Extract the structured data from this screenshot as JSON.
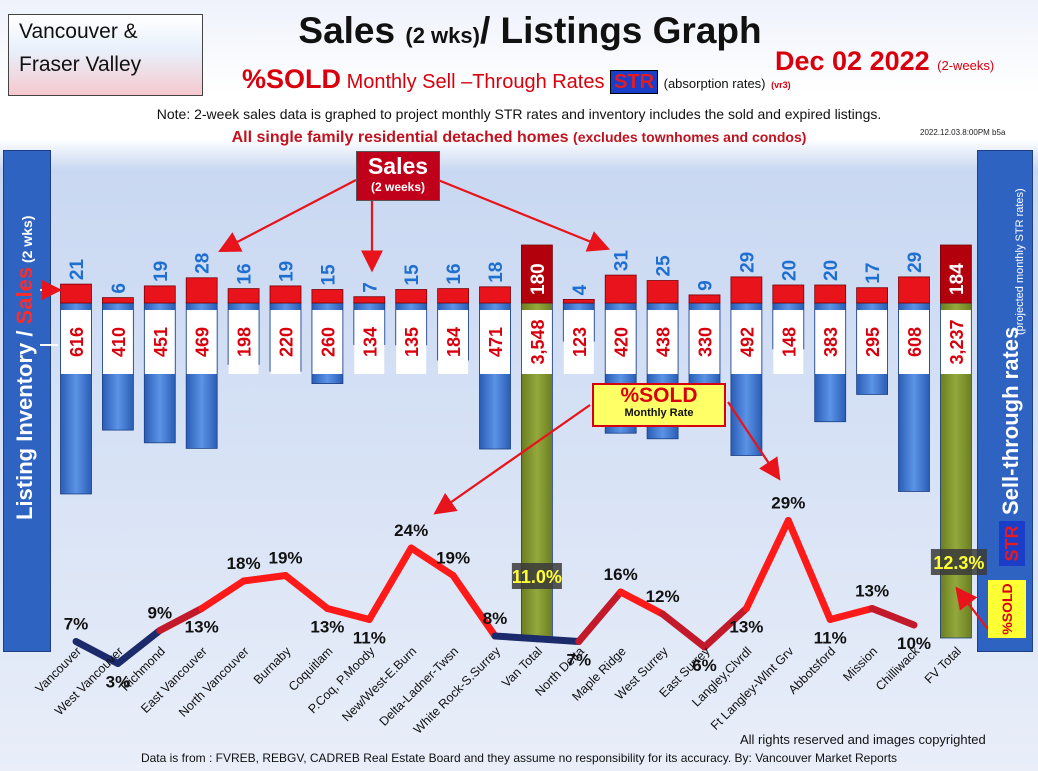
{
  "header": {
    "region_line1": "Vancouver &",
    "region_line2": "Fraser Valley",
    "title_main": "Sales",
    "title_small": "(2 wks)",
    "title_rest": "/ Listings Graph",
    "date": "Dec 02  2022",
    "date_note": "(2-weeks)",
    "subtitle_sold": "%SOLD",
    "subtitle_rates": "Monthly Sell –Through Rates",
    "subtitle_str": "STR",
    "subtitle_abs": "(absorption rates)",
    "subtitle_vr": "(vr3)",
    "note": "Note: 2-week sales data is graphed to project monthly STR rates and inventory includes the sold and expired listings.",
    "homes": "All single family residential detached homes",
    "homes_small": "(excludes townhomes and condos)",
    "stamp": "2022.12.03.8:00PM b5a"
  },
  "side_labels": {
    "left_main": "Listing Inventory / ",
    "left_sales": "Sales",
    "left_small": " (2 wks)",
    "right_main": "Sell-through rates",
    "right_small": "(projected monthly STR rates)",
    "right_str": "STR",
    "right_sold": "%SOLD"
  },
  "callouts": {
    "sales_title": "Sales",
    "sales_sub": "(2 weeks)",
    "sold_title": "%SOLD",
    "sold_sub": "Monthly Rate"
  },
  "footer": {
    "rights": "All rights reserved and  images copyrighted",
    "source": "Data is from : FVREB, REBGV, CADREB Real Estate Board and they assume no responsibility for its accuracy. By: Vancouver Market Reports"
  },
  "colors": {
    "inventory_bar": "#3a73cc",
    "sales_bar": "#e8131b",
    "total_bar": "#7a8f2e",
    "total_sales": "#b3000d",
    "line_high": "#ff1a1a",
    "line_low": "#1b2a6b"
  },
  "chart_data": {
    "type": "bar",
    "categories": [
      "Vancouver",
      "West Vancouver",
      "Richmond",
      "East Vancouver",
      "North Vancouver",
      "Burnaby",
      "Coquitlam",
      "P.Coq, P.Moody",
      "New/West-E.Burn",
      "Delta-Ladner-Twsn",
      "White Rock-S.Surrey",
      "Van Total",
      "North Delta",
      "Maple Ridge",
      "West Surrey",
      "East Surrey",
      "Langley,Clvrdl",
      "Ft Langley-Wlnt Grv",
      "Abbotsford",
      "Mission",
      "Chilliwack",
      "FV Total"
    ],
    "series": [
      {
        "name": "Listing Inventory",
        "values": [
          616,
          410,
          451,
          469,
          198,
          220,
          260,
          134,
          135,
          184,
          471,
          3548,
          123,
          420,
          438,
          330,
          492,
          148,
          383,
          295,
          608,
          3237
        ]
      },
      {
        "name": "Sales",
        "values": [
          21,
          6,
          19,
          28,
          16,
          19,
          15,
          7,
          15,
          16,
          18,
          180,
          4,
          31,
          25,
          9,
          29,
          20,
          20,
          17,
          29,
          184
        ]
      },
      {
        "name": "%SOLD",
        "values": [
          7,
          3,
          9,
          13,
          18,
          19,
          13,
          11,
          24,
          19,
          8,
          11.0,
          7,
          16,
          12,
          6,
          13,
          29,
          11,
          13,
          10,
          12.3
        ]
      }
    ],
    "inventory_labels": [
      "616",
      "410",
      "451",
      "469",
      "198",
      "220",
      "260",
      "134",
      "135",
      "184",
      "471",
      "3,548",
      "123",
      "420",
      "438",
      "330",
      "492",
      "148",
      "383",
      "295",
      "608",
      "3,237"
    ],
    "sold_labels": [
      "7%",
      "3%",
      "9%",
      "13%",
      "18%",
      "19%",
      "13%",
      "11%",
      "24%",
      "19%",
      "8%",
      "11.0%",
      "7%",
      "16%",
      "12%",
      "6%",
      "13%",
      "29%",
      "11%",
      "13%",
      "10%",
      "12.3%"
    ],
    "total_indices": [
      11,
      21
    ]
  }
}
